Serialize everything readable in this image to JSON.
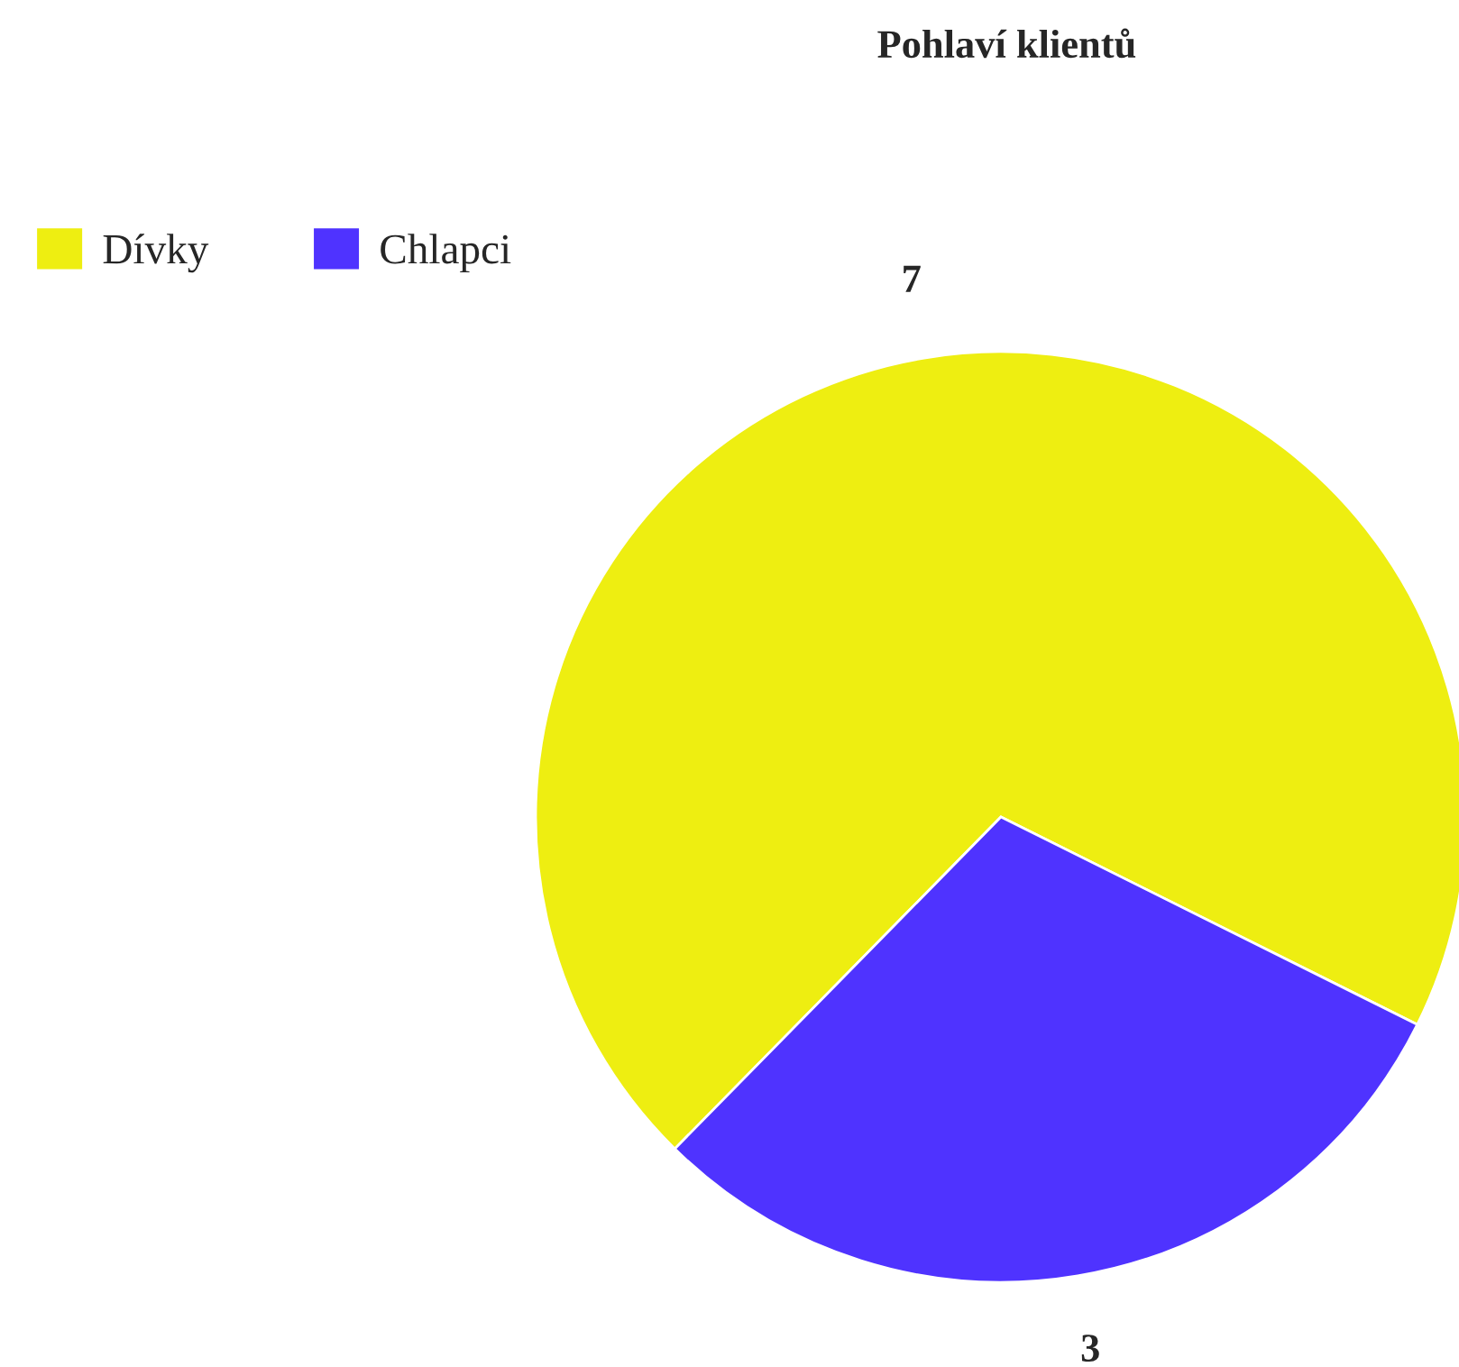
{
  "chart_data": {
    "type": "pie",
    "title": "Pohlaví klientů",
    "categories": [
      "Dívky",
      "Chlapci"
    ],
    "values": [
      7,
      3
    ],
    "colors": [
      "#eeee11",
      "#4f33ff"
    ],
    "data_labels": true,
    "legend": "top left"
  }
}
